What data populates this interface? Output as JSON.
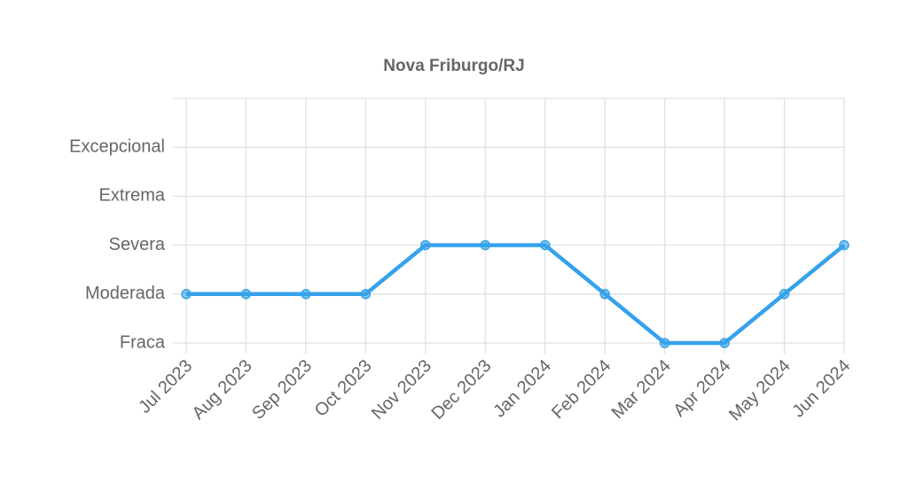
{
  "chart_data": {
    "type": "line",
    "title": "Nova Friburgo/RJ",
    "categories": [
      "Jul 2023",
      "Aug 2023",
      "Sep 2023",
      "Oct 2023",
      "Nov 2023",
      "Dec 2023",
      "Jan 2024",
      "Feb 2024",
      "Mar 2024",
      "Apr 2024",
      "May 2024",
      "Jun 2024"
    ],
    "values": [
      2,
      2,
      2,
      2,
      3,
      3,
      3,
      2,
      1,
      1,
      2,
      3
    ],
    "color": "#36a2eb",
    "ylim": [
      1,
      6
    ],
    "yticks": [
      {
        "value": 1,
        "label": "Fraca"
      },
      {
        "value": 2,
        "label": "Moderada"
      },
      {
        "value": 3,
        "label": "Severa"
      },
      {
        "value": 4,
        "label": "Extrema"
      },
      {
        "value": 5,
        "label": "Excepcional"
      }
    ],
    "grid": true
  }
}
